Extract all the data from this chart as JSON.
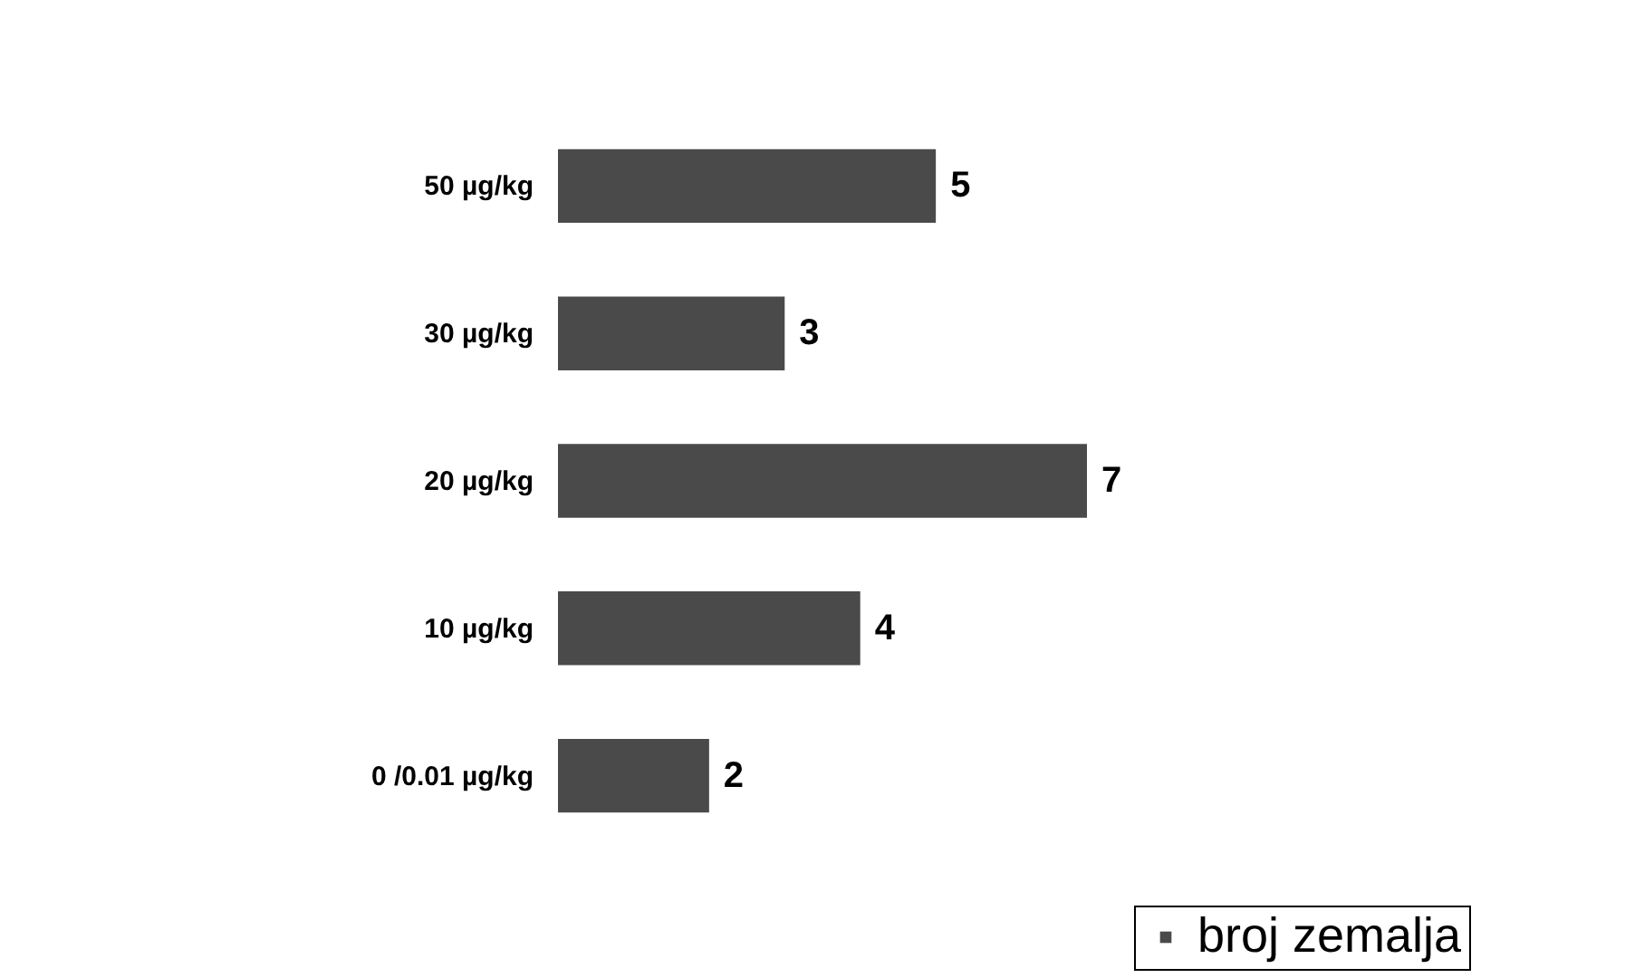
{
  "chart_data": {
    "type": "bar",
    "orientation": "horizontal",
    "data_labels": true,
    "legend": "bottom right",
    "categories": [
      "50 µg/kg",
      "30 µg/kg",
      "20 µg/kg",
      "10 µg/kg",
      "0 /0.01 µg/kg"
    ],
    "series": [
      {
        "name": "broj zemalja",
        "color": "#4a4a4a",
        "values": [
          5,
          3,
          7,
          4,
          2
        ]
      }
    ]
  }
}
